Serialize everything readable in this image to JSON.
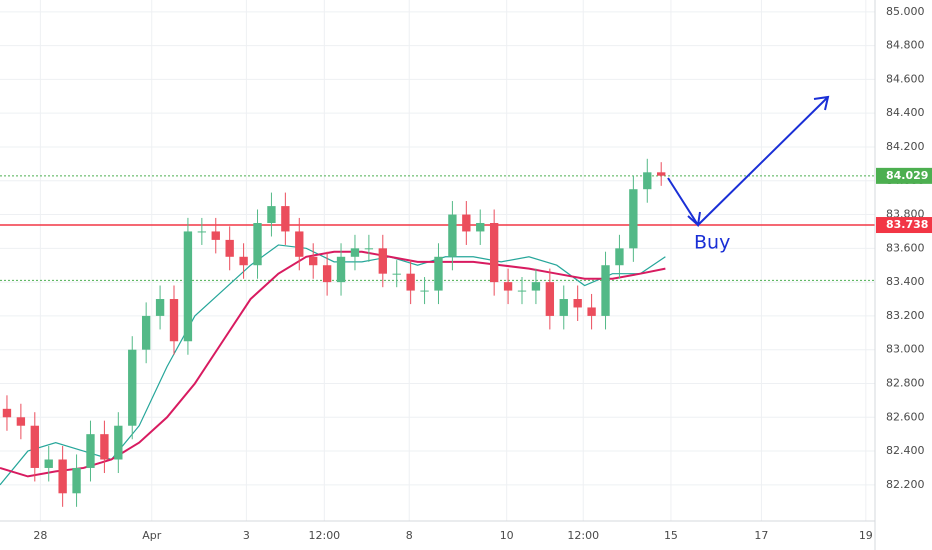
{
  "chart_data": {
    "type": "candlestick",
    "x": [
      0.5,
      1.5,
      2.5,
      3.5,
      4.5,
      5.5,
      6.5,
      7.5,
      8.5,
      9.5,
      10.5,
      11.5,
      12.5,
      13.5,
      14.5,
      15.5,
      16.5,
      17.5,
      18.5,
      19.5,
      20.5,
      21.5,
      22.5,
      23.5,
      24.5,
      25.5,
      26.5,
      27.5,
      28.5,
      29.5,
      30.5,
      31.5,
      32.5,
      33.5,
      34.5,
      35.5,
      36.5,
      37.5,
      38.5,
      39.5,
      40.5,
      41.5,
      42.5,
      43.5,
      44.5,
      45.5,
      46.5,
      47.5
    ],
    "open": [
      82.65,
      82.6,
      82.55,
      82.3,
      82.35,
      82.15,
      82.3,
      82.5,
      82.35,
      82.55,
      83.0,
      83.2,
      83.3,
      83.05,
      83.7,
      83.7,
      83.65,
      83.55,
      83.5,
      83.75,
      83.85,
      83.7,
      83.55,
      83.5,
      83.4,
      83.55,
      83.6,
      83.6,
      83.45,
      83.45,
      83.35,
      83.35,
      83.55,
      83.8,
      83.7,
      83.75,
      83.4,
      83.35,
      83.35,
      83.4,
      83.2,
      83.3,
      83.25,
      83.2,
      83.5,
      83.6,
      83.95,
      84.05
    ],
    "high": [
      82.73,
      82.68,
      82.63,
      82.43,
      82.43,
      82.38,
      82.58,
      82.58,
      82.63,
      83.08,
      83.28,
      83.38,
      83.38,
      83.78,
      83.78,
      83.78,
      83.73,
      83.63,
      83.83,
      83.93,
      83.93,
      83.78,
      83.63,
      83.58,
      83.63,
      83.68,
      83.68,
      83.68,
      83.53,
      83.53,
      83.43,
      83.63,
      83.88,
      83.88,
      83.83,
      83.83,
      83.48,
      83.43,
      83.48,
      83.48,
      83.38,
      83.38,
      83.33,
      83.58,
      83.68,
      84.03,
      84.13,
      84.11
    ],
    "low": [
      82.52,
      82.47,
      82.22,
      82.22,
      82.07,
      82.07,
      82.22,
      82.27,
      82.27,
      82.47,
      82.92,
      83.12,
      82.97,
      82.97,
      83.62,
      83.57,
      83.47,
      83.42,
      83.42,
      83.67,
      83.62,
      83.47,
      83.42,
      83.32,
      83.32,
      83.47,
      83.52,
      83.37,
      83.37,
      83.27,
      83.27,
      83.27,
      83.47,
      83.62,
      83.62,
      83.32,
      83.27,
      83.27,
      83.27,
      83.12,
      83.12,
      83.17,
      83.12,
      83.12,
      83.42,
      83.52,
      83.87,
      83.97
    ],
    "close": [
      82.6,
      82.55,
      82.3,
      82.35,
      82.15,
      82.3,
      82.5,
      82.35,
      82.55,
      83.0,
      83.2,
      83.3,
      83.05,
      83.7,
      83.7,
      83.65,
      83.55,
      83.5,
      83.75,
      83.85,
      83.7,
      83.55,
      83.5,
      83.4,
      83.55,
      83.6,
      83.6,
      83.45,
      83.45,
      83.35,
      83.35,
      83.55,
      83.8,
      83.7,
      83.75,
      83.4,
      83.35,
      83.35,
      83.4,
      83.2,
      83.3,
      83.25,
      83.2,
      83.5,
      83.6,
      83.95,
      84.05,
      84.03
    ],
    "up_color": "#53b987",
    "down_color": "#eb4d5c",
    "lines": [
      {
        "color": "#26a69a",
        "x": [
          0,
          2,
          4,
          6,
          8,
          10,
          12,
          14,
          16,
          18,
          20,
          22,
          24,
          26,
          28,
          30,
          32,
          34,
          36,
          38,
          40,
          42,
          44,
          46,
          47.8
        ],
        "values": [
          82.2,
          82.4,
          82.45,
          82.4,
          82.35,
          82.55,
          82.9,
          83.2,
          83.35,
          83.5,
          83.62,
          83.6,
          83.52,
          83.52,
          83.55,
          83.5,
          83.55,
          83.55,
          83.52,
          83.55,
          83.5,
          83.38,
          83.45,
          83.45,
          83.55
        ]
      },
      {
        "color": "#d81b60",
        "x": [
          0,
          2,
          4,
          6,
          8,
          10,
          12,
          14,
          16,
          18,
          20,
          22,
          24,
          26,
          28,
          30,
          32,
          34,
          36,
          38,
          40,
          42,
          44,
          46,
          47.8
        ],
        "values": [
          82.3,
          82.25,
          82.28,
          82.3,
          82.35,
          82.45,
          82.6,
          82.8,
          83.05,
          83.3,
          83.45,
          83.55,
          83.58,
          83.58,
          83.55,
          83.52,
          83.52,
          83.52,
          83.5,
          83.48,
          83.45,
          83.42,
          83.42,
          83.45,
          83.48
        ]
      }
    ],
    "hlines": [
      {
        "value": 84.029,
        "color": "#4caf50",
        "dashed": true,
        "labeled": true
      },
      {
        "value": 83.738,
        "color": "#f23645",
        "dashed": false,
        "labeled": true
      },
      {
        "value": 83.41,
        "color": "#4caf50",
        "dashed": true,
        "labeled": false
      }
    ],
    "annotation": "Buy",
    "xlim": [
      0,
      62.5
    ],
    "ylim": [
      81.986,
      85.07
    ],
    "xticks": [
      {
        "value": 2.9,
        "label": "28"
      },
      {
        "value": 10.9,
        "label": "Apr"
      },
      {
        "value": 17.7,
        "label": "3"
      },
      {
        "value": 23.3,
        "label": "12:00"
      },
      {
        "value": 29.4,
        "label": "8"
      },
      {
        "value": 36.4,
        "label": "10"
      },
      {
        "value": 41.9,
        "label": "12:00"
      },
      {
        "value": 48.2,
        "label": "15"
      },
      {
        "value": 54.7,
        "label": "17"
      },
      {
        "value": 62.2,
        "label": "19"
      }
    ],
    "yticks": [
      {
        "value": 82.2,
        "label": "82.200"
      },
      {
        "value": 82.4,
        "label": "82.400"
      },
      {
        "value": 82.6,
        "label": "82.600"
      },
      {
        "value": 82.8,
        "label": "82.800"
      },
      {
        "value": 83.0,
        "label": "83.000"
      },
      {
        "value": 83.2,
        "label": "83.200"
      },
      {
        "value": 83.4,
        "label": "83.400"
      },
      {
        "value": 83.6,
        "label": "83.600"
      },
      {
        "value": 83.8,
        "label": "83.800"
      },
      {
        "value": 84.0,
        "label": "84.000"
      },
      {
        "value": 84.2,
        "label": "84.200"
      },
      {
        "value": 84.4,
        "label": "84.400"
      },
      {
        "value": 84.6,
        "label": "84.600"
      },
      {
        "value": 84.8,
        "label": "84.800"
      },
      {
        "value": 85.0,
        "label": "85.000"
      }
    ],
    "grid": true
  }
}
